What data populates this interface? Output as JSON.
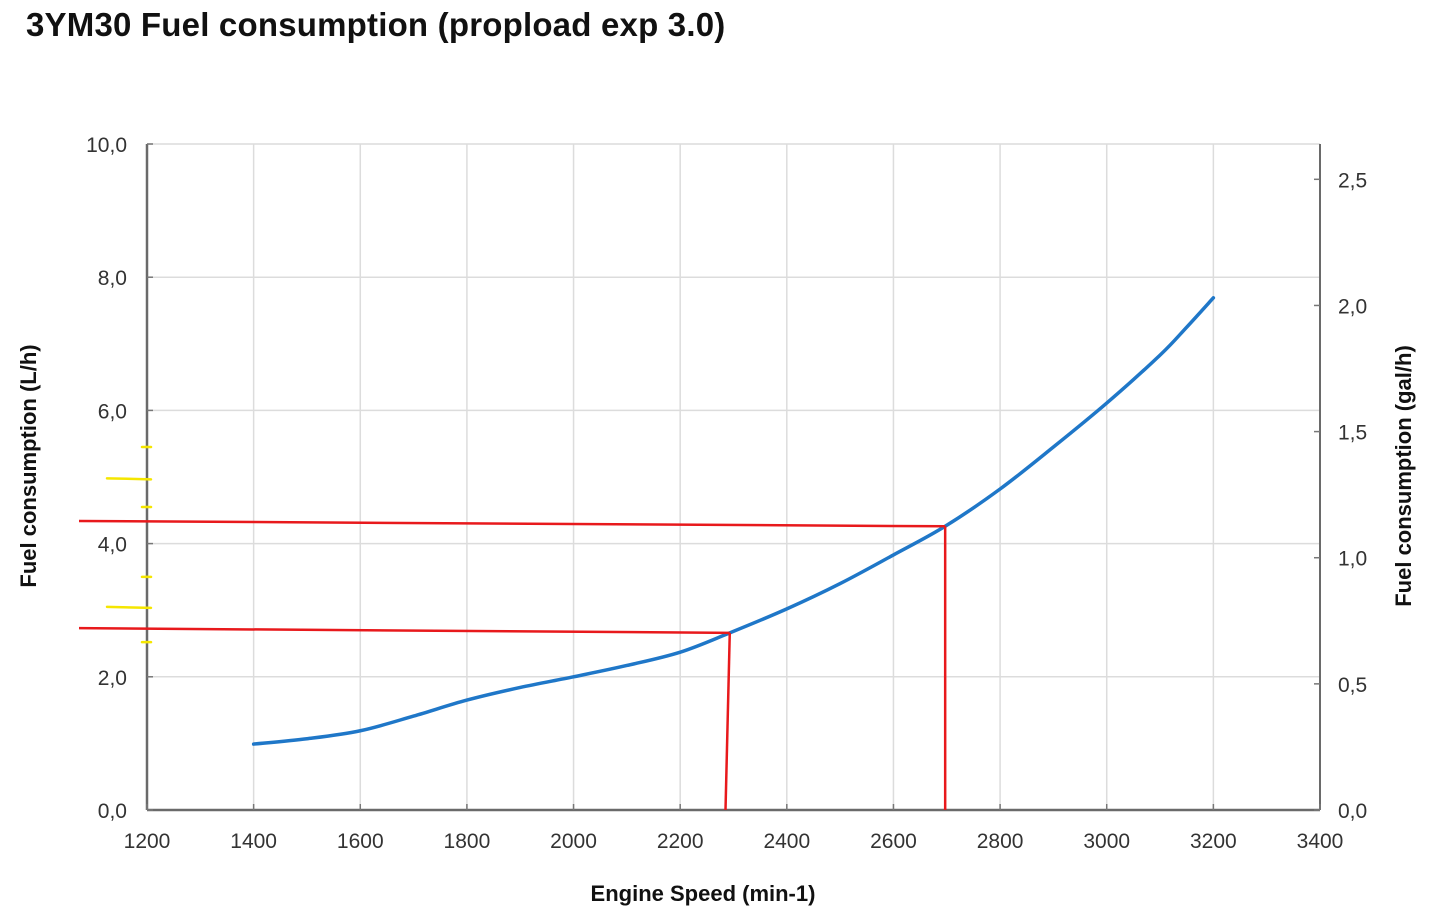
{
  "chart_data": {
    "type": "line",
    "title": "3YM30 Fuel consumption (propload exp 3.0)",
    "xlabel": "Engine Speed (min-1)",
    "ylabel": "Fuel consumption (L/h)",
    "y2label": "Fuel consumption (gal/h)",
    "xlim": [
      1200,
      3400
    ],
    "ylim": [
      0,
      10
    ],
    "y2lim": [
      0,
      2.64
    ],
    "grid": true,
    "x_ticks": [
      1200,
      1400,
      1600,
      1800,
      2000,
      2200,
      2400,
      2600,
      2800,
      3000,
      3200,
      3400
    ],
    "x_tick_labels": [
      "1200",
      "1400",
      "1600",
      "1800",
      "2000",
      "2200",
      "2400",
      "2600",
      "2800",
      "3000",
      "3200",
      "3400"
    ],
    "y_ticks": [
      0,
      2,
      4,
      6,
      8,
      10
    ],
    "y_tick_labels": [
      "0,0",
      "2,0",
      "4,0",
      "6,0",
      "8,0",
      "10,0"
    ],
    "y2_ticks": [
      0,
      0.5,
      1.0,
      1.5,
      2.0,
      2.5
    ],
    "y2_tick_labels": [
      "0,0",
      "0,5",
      "1,0",
      "1,5",
      "2,0",
      "2,5"
    ],
    "series": [
      {
        "name": "Fuel consumption",
        "color": "#1f77c8",
        "x": [
          1400,
          1500,
          1600,
          1700,
          1800,
          1900,
          2000,
          2100,
          2200,
          2293,
          2400,
          2500,
          2600,
          2697,
          2800,
          2900,
          3000,
          3100,
          3150,
          3200
        ],
        "y": [
          0.99,
          1.07,
          1.19,
          1.41,
          1.65,
          1.84,
          2.0,
          2.17,
          2.37,
          2.66,
          3.02,
          3.4,
          3.83,
          4.26,
          4.82,
          5.45,
          6.11,
          6.83,
          7.25,
          7.69
        ]
      }
    ],
    "annotations": {
      "red_lines": {
        "color": "#e8191c",
        "lines": [
          {
            "kind": "horizontal",
            "x": [
              1200,
              2697
            ],
            "y": [
              4.34,
              4.26
            ]
          },
          {
            "kind": "vertical",
            "x": [
              2697,
              2697
            ],
            "y": [
              4.26,
              0
            ]
          },
          {
            "kind": "horizontal",
            "x": [
              1200,
              2293
            ],
            "y": [
              2.73,
              2.66
            ]
          },
          {
            "kind": "vertical",
            "x": [
              2293,
              2285
            ],
            "y": [
              2.66,
              0
            ]
          }
        ]
      },
      "yellow_marks": {
        "color": "#f5e600",
        "marks": [
          {
            "y": 5.45,
            "size": "short"
          },
          {
            "y": 4.98,
            "size": "long"
          },
          {
            "y": 4.55,
            "size": "short"
          },
          {
            "y": 3.5,
            "size": "short"
          },
          {
            "y": 3.05,
            "size": "long"
          },
          {
            "y": 2.52,
            "size": "short"
          }
        ]
      }
    }
  }
}
